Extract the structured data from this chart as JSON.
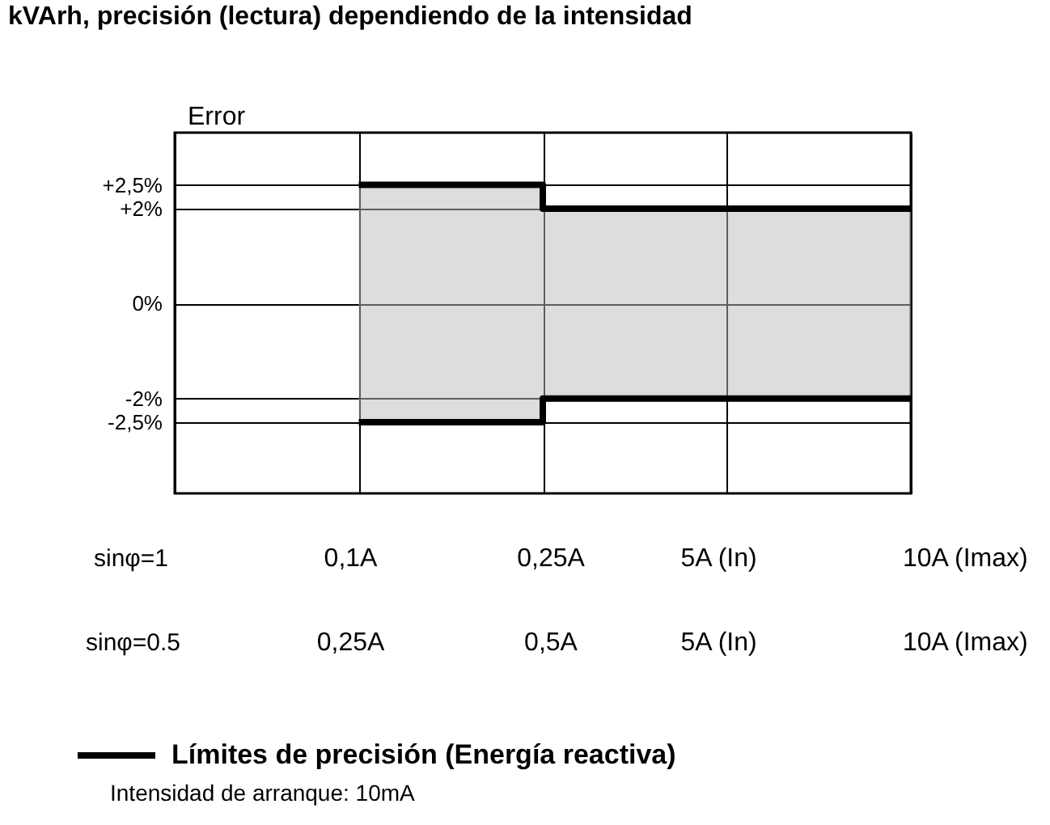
{
  "chart_data": {
    "type": "step",
    "title": "kVArh, precisión (lectura) dependiendo de la intensidad",
    "ylabel": "Error",
    "categories": [
      null,
      null,
      null,
      null,
      null
    ],
    "series": [
      {
        "name": "Límites de precisión (Energía reactiva)",
        "color": "#000000",
        "values": [
          null,
          2.5,
          2,
          2,
          2
        ]
      },
      {
        "color": "#000000",
        "values": [
          null,
          -2.5,
          -2,
          -2,
          -2
        ]
      }
    ],
    "ylim": [
      -4,
      3.6
    ],
    "yticks": [
      {
        "value": 2.5,
        "label": "+2,5%"
      },
      {
        "value": 2,
        "label": "+2%"
      },
      {
        "value": 0,
        "label": "0%"
      },
      {
        "value": -2,
        "label": "-2%"
      },
      {
        "value": -2.5,
        "label": "-2,5%"
      }
    ],
    "grid": true,
    "tick_labels": "y",
    "legend": "bottom",
    "line_style": "solid",
    "annotations": [
      "sinφ=1",
      "0,1A",
      "0,25A",
      "5A (In)",
      "10A (Imax)",
      "sinφ=0.5",
      "0,25A",
      "0,5A",
      "5A (In)",
      "10A (Imax)",
      "Intensidad de arranque:  10mA"
    ]
  }
}
